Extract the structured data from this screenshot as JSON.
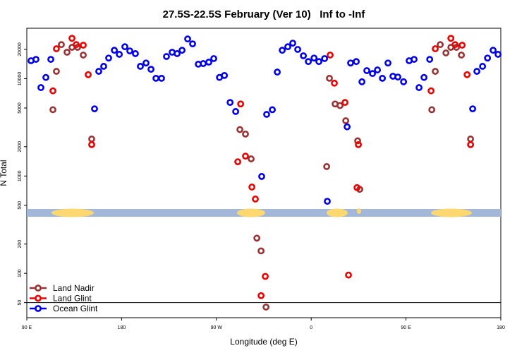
{
  "chart_data": {
    "type": "scatter",
    "title": "27.5S-22.5S February (Ver 10)   Inf to -Inf",
    "x_label": "Longitude (deg E)",
    "y_label": "N Total",
    "log_y": true,
    "legend": "lower left",
    "xlim": [
      90,
      540
    ],
    "xticks": [
      {
        "value": 90,
        "label": "90 E"
      },
      {
        "value": 180,
        "label": "180"
      },
      {
        "value": 270,
        "label": "90 W"
      },
      {
        "value": 360,
        "label": "0"
      },
      {
        "value": 450,
        "label": "90 E"
      },
      {
        "value": 540,
        "label": "180"
      }
    ],
    "ylim": [
      35,
      33000
    ],
    "yticks": [
      50,
      100,
      200,
      500,
      1000,
      2000,
      5000,
      10000,
      20000
    ],
    "series": [
      {
        "name": "Land Nadir",
        "color": "#993333",
        "x": [
          114.8,
          118.1,
          122.8,
          128.2,
          132.9,
          138.2,
          143.6,
          151.6,
          292.3,
          297.6,
          303,
          308.4,
          312.4,
          317.1,
          374.7,
          377.3,
          382.7,
          387.4,
          392.8,
          404.1,
          406.1,
          474.5,
          477.8,
          482.5,
          487.9,
          492.6,
          497.9,
          502.6,
          511.3
        ],
        "values": [
          4800,
          11900,
          22400,
          18700,
          21000,
          21000,
          17500,
          2400,
          3000,
          2700,
          1500,
          230,
          170,
          45,
          1250,
          10100,
          5500,
          5300,
          3700,
          2300,
          730,
          4800,
          11900,
          22400,
          18400,
          21000,
          21000,
          17500,
          2400
        ]
      },
      {
        "name": "Land Glint",
        "color": "#ee0000",
        "x": [
          114.8,
          118.1,
          132.9,
          136.9,
          143.6,
          148.3,
          151.6,
          290.3,
          293,
          297.6,
          303.7,
          307,
          312.4,
          316.4,
          378,
          382,
          392.1,
          395.4,
          404.8,
          403.5,
          473.8,
          477.8,
          492.6,
          496.6,
          503.3,
          508,
          511.3
        ],
        "values": [
          7500,
          20300,
          26000,
          22400,
          22100,
          11000,
          2100,
          1400,
          5500,
          1600,
          770,
          580,
          59,
          93,
          17500,
          9000,
          5700,
          96,
          2100,
          760,
          7500,
          20300,
          26000,
          22400,
          22100,
          11000,
          2100
        ]
      },
      {
        "name": "Ocean Glint",
        "color": "#0000ee",
        "x": [
          94,
          98.7,
          103.4,
          108.1,
          112.8,
          154.3,
          158.3,
          163,
          167.7,
          173.1,
          177.8,
          183.1,
          187.8,
          193.1,
          197.8,
          203.2,
          207.9,
          212.6,
          217.9,
          222.6,
          228,
          232.7,
          237.4,
          242.7,
          247.4,
          252.8,
          257.5,
          262.8,
          267.5,
          272.9,
          277.6,
          283,
          288.3,
          313,
          317.7,
          323.1,
          327.8,
          332.5,
          337.8,
          342.5,
          347.2,
          352.6,
          357.3,
          362.7,
          367.3,
          372.7,
          375.3,
          394.1,
          397.4,
          402.8,
          408.2,
          412.8,
          418.2,
          422.9,
          427.6,
          432.9,
          437.6,
          442.3,
          447.7,
          453,
          457.7,
          462.4,
          467.1,
          472.5,
          513.3,
          517.3,
          522.7,
          527.4,
          532.7,
          537.4
        ],
        "values": [
          15300,
          15800,
          8100,
          10300,
          15800,
          4900,
          11900,
          13400,
          16300,
          19600,
          17800,
          21300,
          19300,
          18100,
          13400,
          14500,
          12500,
          10100,
          10100,
          16900,
          18700,
          18100,
          19600,
          25600,
          22800,
          14100,
          14300,
          14800,
          16100,
          10300,
          10800,
          5700,
          4600,
          990,
          4300,
          4800,
          11700,
          19600,
          21300,
          23200,
          20000,
          17200,
          15000,
          16300,
          15000,
          16100,
          550,
          3200,
          14500,
          15000,
          9300,
          12100,
          11300,
          12300,
          10100,
          14500,
          10600,
          10400,
          9300,
          15300,
          15800,
          8100,
          10300,
          15800,
          4900,
          11900,
          13400,
          16300,
          19600,
          17800
        ]
      }
    ]
  }
}
